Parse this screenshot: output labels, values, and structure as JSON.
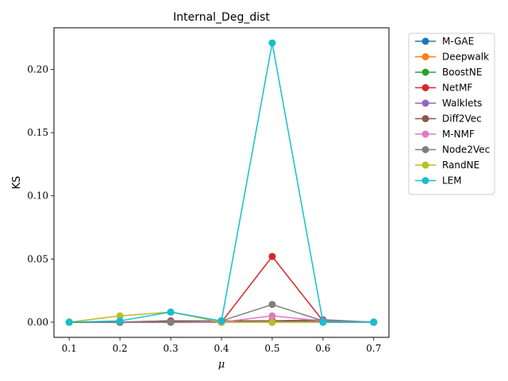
{
  "chart_data": {
    "type": "line",
    "title": "Internal_Deg_dist",
    "xlabel": "μ",
    "ylabel": "KS",
    "x": [
      0.1,
      0.2,
      0.3,
      0.4,
      0.5,
      0.6,
      0.7
    ],
    "xlim": [
      0.07,
      0.73
    ],
    "ylim": [
      -0.012,
      0.233
    ],
    "xticks": [
      "0.1",
      "0.2",
      "0.3",
      "0.4",
      "0.5",
      "0.6",
      "0.7"
    ],
    "yticks": [
      "0.00",
      "0.05",
      "0.10",
      "0.15",
      "0.20"
    ],
    "ytick_values": [
      0.0,
      0.05,
      0.1,
      0.15,
      0.2
    ],
    "grid": false,
    "legend_position": "outside right",
    "series": [
      {
        "name": "M-GAE",
        "color": "#1f77b4",
        "values": [
          0.0,
          0.0,
          0.0,
          0.0,
          0.0,
          0.0,
          0.0
        ]
      },
      {
        "name": "Deepwalk",
        "color": "#ff7f0e",
        "values": [
          0.0,
          0.0,
          0.0,
          0.0,
          0.0,
          0.0,
          0.0
        ]
      },
      {
        "name": "BoostNE",
        "color": "#2ca02c",
        "values": [
          0.0,
          0.0,
          0.0,
          0.0,
          0.001,
          0.0,
          0.0
        ]
      },
      {
        "name": "NetMF",
        "color": "#d62728",
        "values": [
          0.0,
          0.0,
          0.0,
          0.0,
          0.052,
          0.001,
          0.0
        ]
      },
      {
        "name": "Walklets",
        "color": "#9467bd",
        "values": [
          0.0,
          0.0,
          0.001,
          0.001,
          0.001,
          0.002,
          0.0
        ]
      },
      {
        "name": "Diff2Vec",
        "color": "#8c564b",
        "values": [
          0.0,
          0.0,
          0.001,
          0.001,
          0.001,
          0.001,
          0.0
        ]
      },
      {
        "name": "M-NMF",
        "color": "#e377c2",
        "values": [
          0.0,
          0.0,
          0.0,
          0.0,
          0.005,
          0.001,
          0.0
        ]
      },
      {
        "name": "Node2Vec",
        "color": "#7f7f7f",
        "values": [
          0.0,
          0.0,
          0.0,
          0.001,
          0.014,
          0.001,
          0.0
        ]
      },
      {
        "name": "RandNE",
        "color": "#bcbd22",
        "values": [
          0.0,
          0.005,
          0.008,
          0.0,
          0.0,
          0.0,
          0.0
        ]
      },
      {
        "name": "LEM",
        "color": "#17becf",
        "values": [
          0.0,
          0.001,
          0.008,
          0.001,
          0.221,
          0.0,
          0.0
        ]
      }
    ]
  }
}
